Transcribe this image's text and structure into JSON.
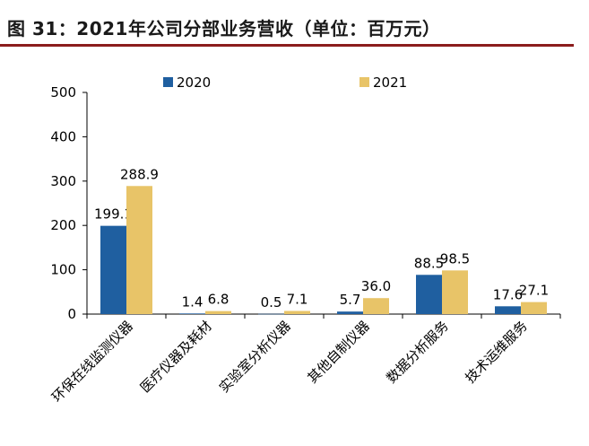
{
  "header": {
    "title": "图 31：2021年公司分部业务营收（单位：百万元）",
    "rule_color": "#8b1c1c"
  },
  "chart_data": {
    "type": "bar",
    "categories": [
      "环保在线监测仪器",
      "医疗仪器及耗材",
      "实验室分析仪器",
      "其他自制仪器",
      "数据分析服务",
      "技术运维服务"
    ],
    "series": [
      {
        "name": "2020",
        "color": "#1f5fa0",
        "values": [
          199.1,
          1.4,
          0.5,
          5.7,
          88.5,
          17.6
        ]
      },
      {
        "name": "2021",
        "color": "#e8c468",
        "values": [
          288.9,
          6.8,
          7.1,
          36.0,
          98.5,
          27.1
        ]
      }
    ],
    "value_labels": [
      [
        "199.1",
        "1.4",
        "0.5",
        "5.7",
        "88.5",
        "17.6"
      ],
      [
        "288.9",
        "6.8",
        "7.1",
        "36.0",
        "98.5",
        "27.1"
      ]
    ],
    "ylim": [
      0,
      500
    ],
    "yticks": [
      "0",
      "100",
      "200",
      "300",
      "400",
      "500"
    ],
    "grid": false,
    "legend_position": "top"
  }
}
